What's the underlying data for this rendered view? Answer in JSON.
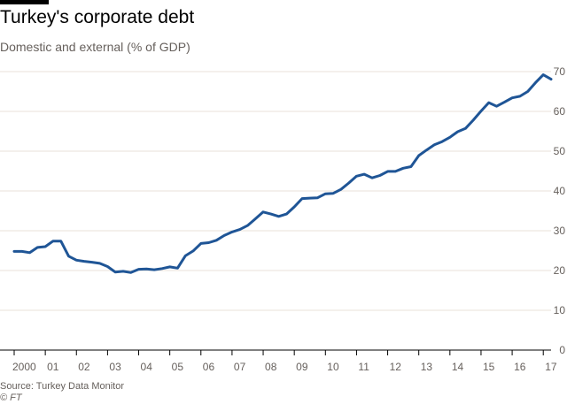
{
  "header": {
    "title": "Turkey's corporate debt",
    "subtitle": "Domestic and external (% of GDP)"
  },
  "footer": {
    "source": "Source: Turkey Data Monitor",
    "credit": "© FT"
  },
  "colors": {
    "line": "#1f5596",
    "grid": "#e9e1da",
    "axis": "#000000",
    "text": "#66605c"
  },
  "chart_data": {
    "type": "line",
    "title": "Turkey's corporate debt",
    "subtitle": "Domestic and external (% of GDP)",
    "xlabel": "",
    "ylabel": "",
    "ylim": [
      0,
      70
    ],
    "xlim": [
      2000,
      2017.25
    ],
    "yticks": [
      0,
      10,
      20,
      30,
      40,
      50,
      60,
      70
    ],
    "xtick_labels": [
      {
        "x": 2000,
        "label": "2000"
      },
      {
        "x": 2001,
        "label": "01"
      },
      {
        "x": 2002,
        "label": "02"
      },
      {
        "x": 2003,
        "label": "03"
      },
      {
        "x": 2004,
        "label": "04"
      },
      {
        "x": 2005,
        "label": "05"
      },
      {
        "x": 2006,
        "label": "06"
      },
      {
        "x": 2007,
        "label": "07"
      },
      {
        "x": 2008,
        "label": "08"
      },
      {
        "x": 2009,
        "label": "09"
      },
      {
        "x": 2010,
        "label": "10"
      },
      {
        "x": 2011,
        "label": "11"
      },
      {
        "x": 2012,
        "label": "12"
      },
      {
        "x": 2013,
        "label": "13"
      },
      {
        "x": 2014,
        "label": "14"
      },
      {
        "x": 2015,
        "label": "15"
      },
      {
        "x": 2016,
        "label": "16"
      },
      {
        "x": 2017,
        "label": "17"
      }
    ],
    "grid": true,
    "series": [
      {
        "values": [
          [
            2000.0,
            24.8
          ],
          [
            2000.25,
            24.8
          ],
          [
            2000.5,
            24.5
          ],
          [
            2000.75,
            25.8
          ],
          [
            2001.0,
            26.0
          ],
          [
            2001.25,
            27.4
          ],
          [
            2001.5,
            27.4
          ],
          [
            2001.75,
            23.6
          ],
          [
            2002.0,
            22.6
          ],
          [
            2002.25,
            22.3
          ],
          [
            2002.5,
            22.1
          ],
          [
            2002.75,
            21.8
          ],
          [
            2003.0,
            21.0
          ],
          [
            2003.25,
            19.6
          ],
          [
            2003.5,
            19.8
          ],
          [
            2003.75,
            19.5
          ],
          [
            2004.0,
            20.3
          ],
          [
            2004.25,
            20.4
          ],
          [
            2004.5,
            20.2
          ],
          [
            2004.75,
            20.5
          ],
          [
            2005.0,
            20.9
          ],
          [
            2005.25,
            20.6
          ],
          [
            2005.5,
            23.7
          ],
          [
            2005.75,
            24.9
          ],
          [
            2006.0,
            26.8
          ],
          [
            2006.25,
            27.0
          ],
          [
            2006.5,
            27.6
          ],
          [
            2006.75,
            28.8
          ],
          [
            2007.0,
            29.7
          ],
          [
            2007.25,
            30.3
          ],
          [
            2007.5,
            31.3
          ],
          [
            2007.75,
            33.0
          ],
          [
            2008.0,
            34.7
          ],
          [
            2008.25,
            34.2
          ],
          [
            2008.5,
            33.6
          ],
          [
            2008.75,
            34.2
          ],
          [
            2009.0,
            36.0
          ],
          [
            2009.25,
            38.1
          ],
          [
            2009.5,
            38.2
          ],
          [
            2009.75,
            38.3
          ],
          [
            2010.0,
            39.3
          ],
          [
            2010.25,
            39.4
          ],
          [
            2010.5,
            40.4
          ],
          [
            2010.75,
            42.0
          ],
          [
            2011.0,
            43.7
          ],
          [
            2011.25,
            44.2
          ],
          [
            2011.5,
            43.3
          ],
          [
            2011.75,
            43.9
          ],
          [
            2012.0,
            44.9
          ],
          [
            2012.25,
            44.9
          ],
          [
            2012.5,
            45.7
          ],
          [
            2012.75,
            46.1
          ],
          [
            2013.0,
            48.9
          ],
          [
            2013.25,
            50.3
          ],
          [
            2013.5,
            51.6
          ],
          [
            2013.75,
            52.4
          ],
          [
            2014.0,
            53.5
          ],
          [
            2014.25,
            54.9
          ],
          [
            2014.5,
            55.7
          ],
          [
            2014.75,
            57.8
          ],
          [
            2015.0,
            60.1
          ],
          [
            2015.25,
            62.2
          ],
          [
            2015.5,
            61.3
          ],
          [
            2015.75,
            62.3
          ],
          [
            2016.0,
            63.4
          ],
          [
            2016.25,
            63.8
          ],
          [
            2016.5,
            65.0
          ],
          [
            2016.75,
            67.2
          ],
          [
            2017.0,
            69.2
          ],
          [
            2017.25,
            68.1
          ]
        ]
      }
    ]
  }
}
